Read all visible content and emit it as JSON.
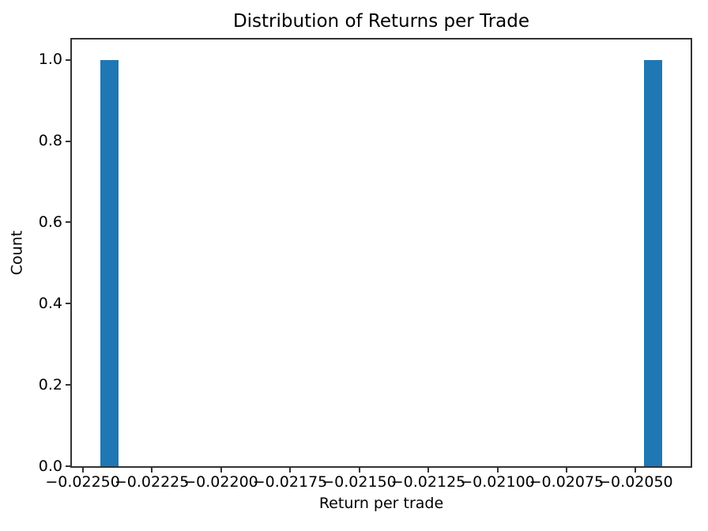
{
  "chart_data": {
    "type": "bar",
    "subtype": "histogram",
    "title": "Distribution of Returns per Trade",
    "xlabel": "Return per trade",
    "ylabel": "Count",
    "bar_color": "#1f77b4",
    "axis_color": "#333333",
    "text_color": "#000000",
    "background_color": "#ffffff",
    "grid": false,
    "legend": false,
    "xlim": [
      -0.02253881,
      -0.02030119
    ],
    "ylim": [
      0,
      1.05
    ],
    "xticks": [
      {
        "value": -0.0225,
        "label": "−0.02250"
      },
      {
        "value": -0.02225,
        "label": "−0.02225"
      },
      {
        "value": -0.022,
        "label": "−0.02200"
      },
      {
        "value": -0.02175,
        "label": "−0.02175"
      },
      {
        "value": -0.0215,
        "label": "−0.02150"
      },
      {
        "value": -0.02125,
        "label": "−0.02125"
      },
      {
        "value": -0.021,
        "label": "−0.02100"
      },
      {
        "value": -0.02075,
        "label": "−0.02075"
      },
      {
        "value": -0.0205,
        "label": "−0.02050"
      }
    ],
    "yticks": [
      {
        "value": 0.0,
        "label": "0.0"
      },
      {
        "value": 0.2,
        "label": "0.2"
      },
      {
        "value": 0.4,
        "label": "0.4"
      },
      {
        "value": 0.6,
        "label": "0.6"
      },
      {
        "value": 0.8,
        "label": "0.8"
      },
      {
        "value": 1.0,
        "label": "1.0"
      }
    ],
    "bars": [
      {
        "x0": -0.0224371,
        "x1": -0.0223693,
        "count": 1
      },
      {
        "x0": -0.0204707,
        "x1": -0.0204029,
        "count": 1
      }
    ]
  }
}
